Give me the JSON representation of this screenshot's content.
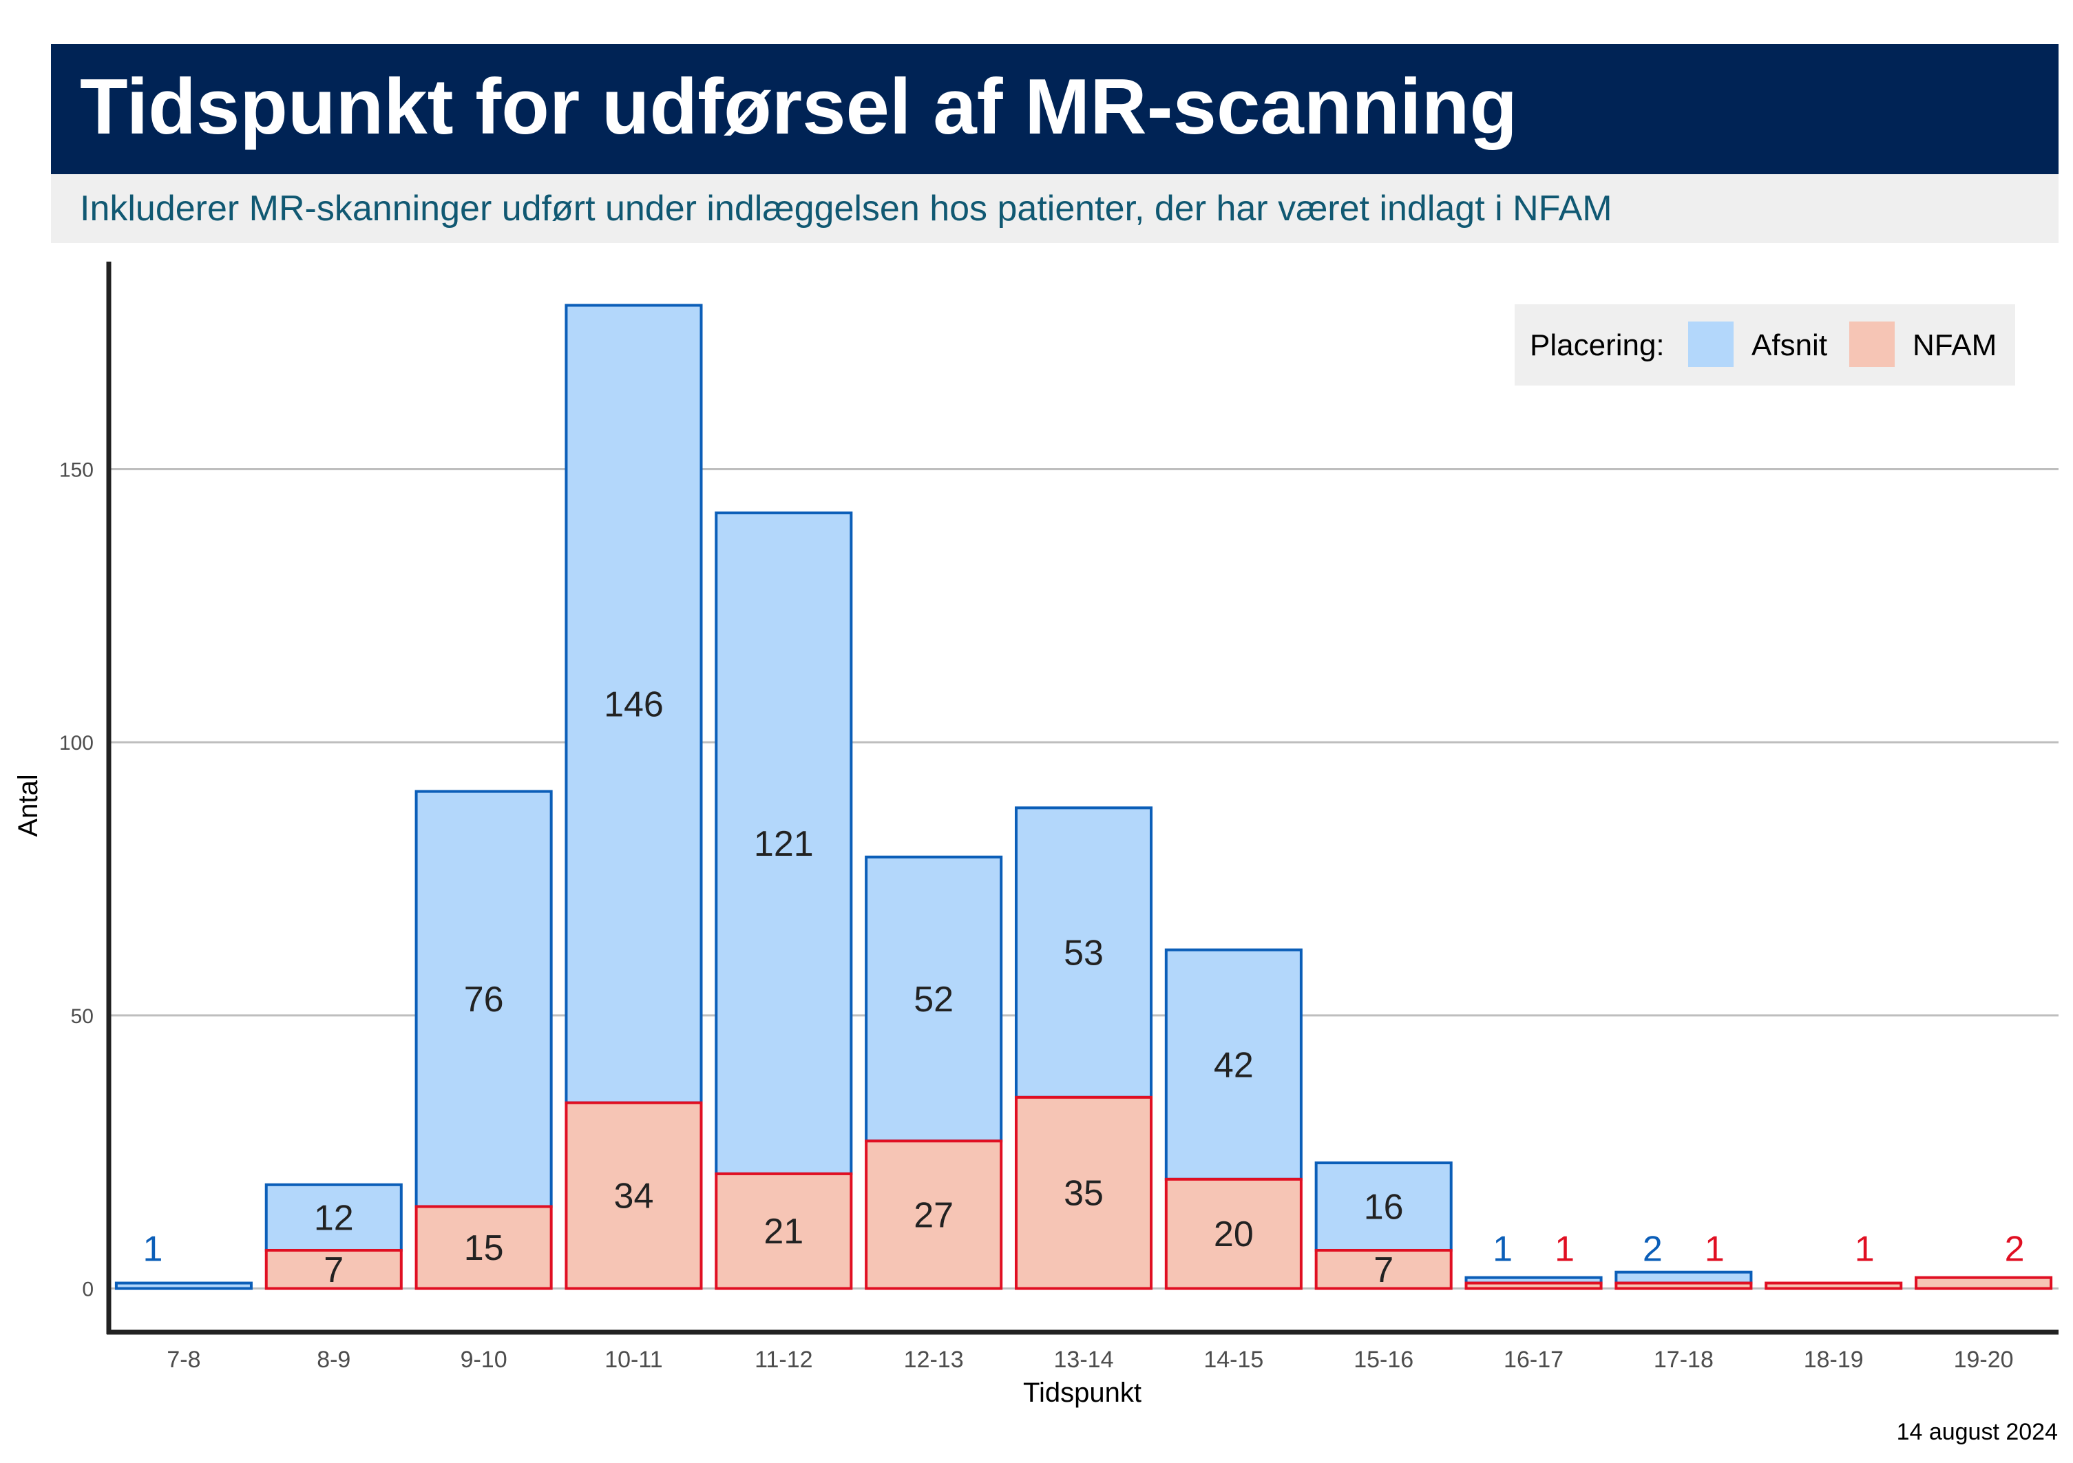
{
  "title": "Tidspunkt for udførsel af MR-scanning",
  "subtitle": "Inkluderer MR-skanninger udført under indlæggelsen hos patienter, der har været indlagt i NFAM",
  "date": "14 august 2024",
  "colors": {
    "header_bg": "#002355",
    "subtitle_text": "#105872",
    "afsnit_fill": "#b3d7fb",
    "afsnit_stroke": "#0b5eb8",
    "nfam_fill": "#f6c5b5",
    "nfam_stroke": "#e00f22"
  },
  "chart_data": {
    "type": "bar",
    "stacked": true,
    "xlabel": "Tidspunkt",
    "ylabel": "Antal",
    "categories": [
      "7-8",
      "8-9",
      "9-10",
      "10-11",
      "11-12",
      "12-13",
      "13-14",
      "14-15",
      "15-16",
      "16-17",
      "17-18",
      "18-19",
      "19-20"
    ],
    "series": [
      {
        "name": "NFAM",
        "values": [
          0,
          7,
          15,
          34,
          21,
          27,
          35,
          20,
          7,
          1,
          1,
          1,
          2
        ]
      },
      {
        "name": "Afsnit",
        "values": [
          1,
          12,
          76,
          146,
          121,
          52,
          53,
          42,
          16,
          1,
          2,
          0,
          0
        ]
      }
    ],
    "yticks": [
      0,
      50,
      100,
      150
    ],
    "ylim": [
      -8,
      188
    ],
    "grid": "horizontal",
    "legend": {
      "title": "Placering:",
      "placement": "top-right",
      "items": [
        "Afsnit",
        "NFAM"
      ]
    }
  }
}
